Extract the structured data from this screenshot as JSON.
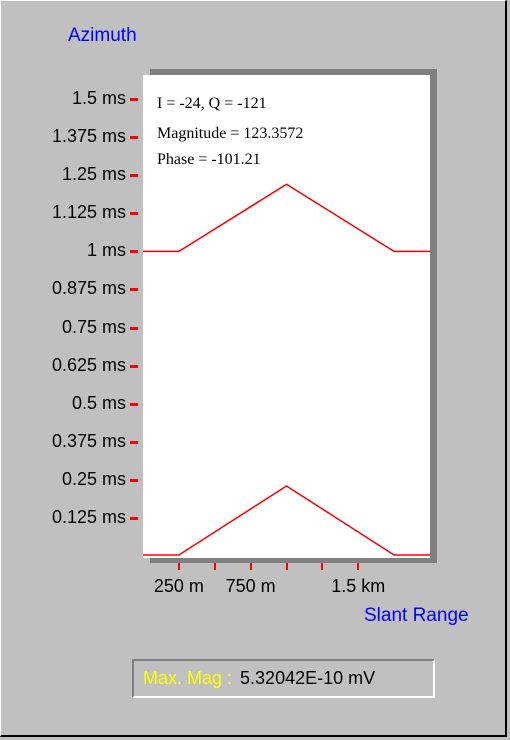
{
  "chart_data": {
    "type": "line",
    "ylabel": "Azimuth",
    "xlabel": "Slant Range",
    "y_ticks": [
      "1.5 ms",
      "1.375 ms",
      "1.25 ms",
      "1.125 ms",
      "1 ms",
      "0.875 ms",
      "0.75 ms",
      "0.625 ms",
      "0.5 ms",
      "0.375 ms",
      "0.25 ms",
      "0.125 ms"
    ],
    "y_tick_values": [
      1.5,
      1.375,
      1.25,
      1.125,
      1.0,
      0.875,
      0.75,
      0.625,
      0.5,
      0.375,
      0.25,
      0.125
    ],
    "x_tick_labels": [
      "250 m",
      "750 m",
      "1.5 km"
    ],
    "x_tick_values": [
      0.25,
      0.75,
      1.5
    ],
    "minor_x_ticks": [
      0.5,
      1.0,
      1.25
    ],
    "xlim": [
      0.0,
      2.0
    ],
    "ylim": [
      0.0,
      1.6
    ],
    "series": [
      {
        "values_x": [
          0.0,
          0.25,
          1.0,
          1.75,
          2.0
        ],
        "values_y": [
          1.0,
          1.0,
          1.22,
          1.0,
          1.0
        ]
      },
      {
        "values_x": [
          0.0,
          0.25,
          1.0,
          1.75,
          2.0
        ],
        "values_y": [
          0.0,
          0.0,
          0.23,
          0.0,
          0.0
        ]
      }
    ],
    "color": "#ff0000"
  },
  "info": {
    "iq": "I = -24, Q = -121",
    "magnitude": "Magnitude = 123.3572",
    "phase": "Phase = -101.21"
  },
  "readout": {
    "label": "Max. Mag :",
    "value": "5.32042E-10 mV"
  }
}
